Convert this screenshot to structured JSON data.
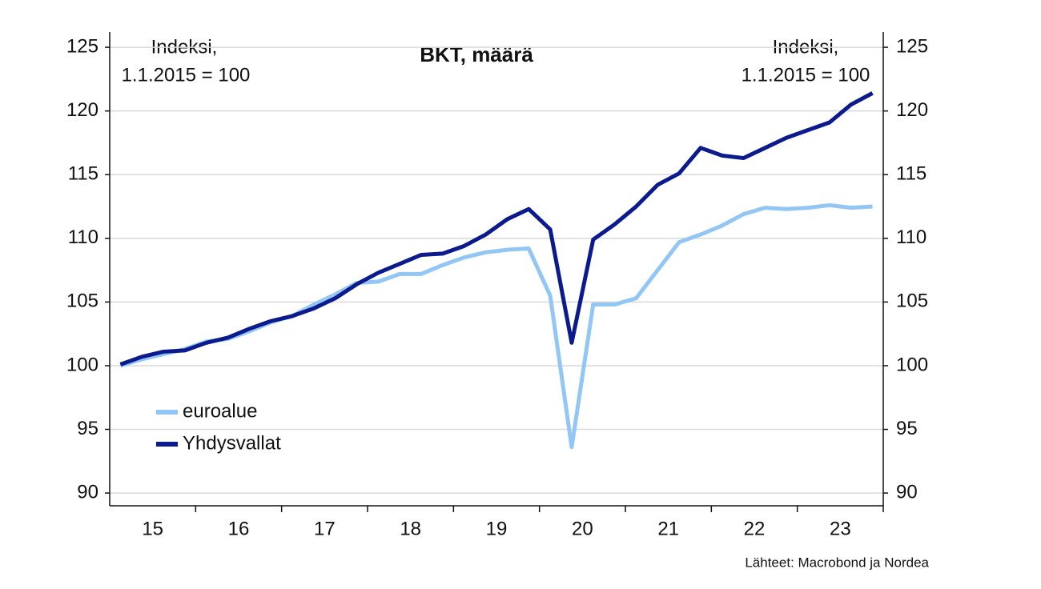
{
  "chart_data": {
    "type": "line",
    "title": "BKT, määrä",
    "annotations": [
      "Indeksi,",
      "1.1.2015 = 100"
    ],
    "source": "Lähteet: Macrobond ja Nordea",
    "x": [
      15.125,
      15.375,
      15.625,
      15.875,
      16.125,
      16.375,
      16.625,
      16.875,
      17.125,
      17.375,
      17.625,
      17.875,
      18.125,
      18.375,
      18.625,
      18.875,
      19.125,
      19.375,
      19.625,
      19.875,
      20.125,
      20.375,
      20.625,
      20.875,
      21.125,
      21.375,
      21.625,
      21.875,
      22.125,
      22.375,
      22.625,
      22.875,
      23.125,
      23.375,
      23.625,
      23.875
    ],
    "xlim": [
      15,
      24
    ],
    "xticks": [
      {
        "value": 15.5,
        "label": "15"
      },
      {
        "value": 16.5,
        "label": "16"
      },
      {
        "value": 17.5,
        "label": "17"
      },
      {
        "value": 18.5,
        "label": "18"
      },
      {
        "value": 19.5,
        "label": "19"
      },
      {
        "value": 20.5,
        "label": "20"
      },
      {
        "value": 21.5,
        "label": "21"
      },
      {
        "value": 22.5,
        "label": "22"
      },
      {
        "value": 23.5,
        "label": "23"
      }
    ],
    "ylim": [
      89,
      126.2
    ],
    "yticks": [
      90,
      95,
      100,
      105,
      110,
      115,
      120,
      125
    ],
    "y2lim": [
      89,
      126.2
    ],
    "y2ticks": [
      90,
      95,
      100,
      105,
      110,
      115,
      120,
      125
    ],
    "grid": true,
    "legend": "lower left",
    "series": [
      {
        "name": "euroalue",
        "color": "#92c6f4",
        "values": [
          100.0,
          100.5,
          100.9,
          101.3,
          101.9,
          102.1,
          102.7,
          103.4,
          103.9,
          104.8,
          105.6,
          106.5,
          106.6,
          107.2,
          107.2,
          107.9,
          108.5,
          108.9,
          109.1,
          109.2,
          105.5,
          93.6,
          104.8,
          104.8,
          105.3,
          107.5,
          109.7,
          110.3,
          111.0,
          111.9,
          112.4,
          112.3,
          112.4,
          112.6,
          112.4,
          112.5
        ]
      },
      {
        "name": "Yhdysvallat",
        "color": "#0b1a8c",
        "values": [
          100.1,
          100.7,
          101.1,
          101.2,
          101.8,
          102.2,
          102.9,
          103.5,
          103.9,
          104.5,
          105.3,
          106.4,
          107.3,
          108.0,
          108.7,
          108.8,
          109.4,
          110.3,
          111.5,
          112.3,
          110.7,
          101.8,
          109.9,
          111.1,
          112.5,
          114.2,
          115.1,
          117.1,
          116.5,
          116.3,
          117.1,
          117.9,
          118.5,
          119.1,
          120.5,
          121.4
        ]
      }
    ]
  }
}
